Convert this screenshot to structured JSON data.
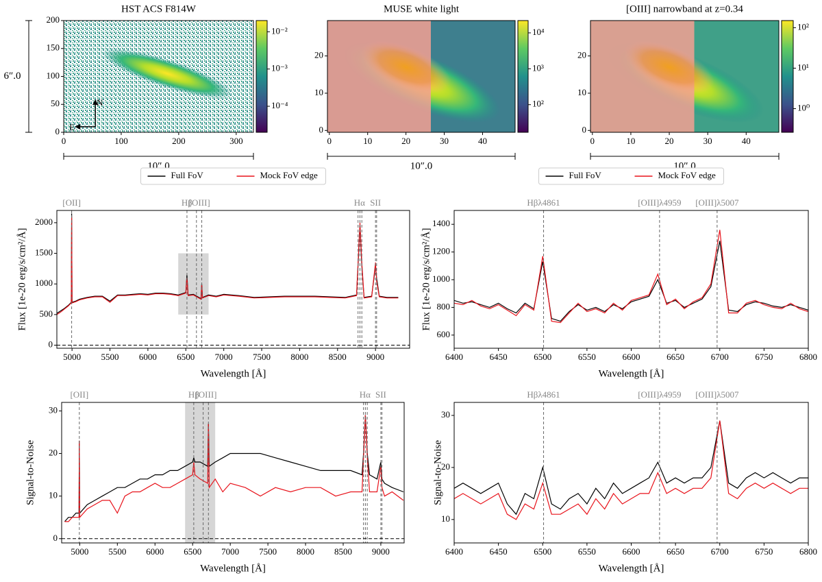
{
  "chart_data": [
    {
      "type": "image",
      "title": "HST ACS F814W",
      "xlim": [
        0,
        330
      ],
      "ylim": [
        0,
        200
      ],
      "xticks": [
        0,
        100,
        200,
        300
      ],
      "yticks": [
        0,
        50,
        100,
        150,
        200
      ],
      "colorbar": {
        "log": true,
        "lim": [
          2e-05,
          0.02
        ],
        "ticks": [
          {
            "value": 0.01,
            "label": "10⁻²"
          },
          {
            "value": 0.001,
            "label": "10⁻³"
          },
          {
            "value": 0.0001,
            "label": "10⁻⁴"
          }
        ]
      },
      "scalebar_x": "10″.0",
      "scalebar_y": "6″.0",
      "compass": [
        "N",
        "E"
      ]
    },
    {
      "type": "image",
      "title": "MUSE white light",
      "xlim": [
        -0.5,
        48.5
      ],
      "ylim": [
        -0.5,
        29.5
      ],
      "xticks": [
        0,
        10,
        20,
        30,
        40
      ],
      "yticks": [
        0,
        10,
        20
      ],
      "colorbar": {
        "log": true,
        "lim": [
          17,
          22000
        ],
        "ticks": [
          {
            "value": 10000,
            "label": "10⁴"
          },
          {
            "value": 1000,
            "label": "10³"
          },
          {
            "value": 100,
            "label": "10²"
          }
        ]
      },
      "scalebar_x": "10″.0"
    },
    {
      "type": "image",
      "title": "[OIII] narrowband at z=0.34",
      "xlim": [
        -0.5,
        48.5
      ],
      "ylim": [
        -0.5,
        29.5
      ],
      "xticks": [
        0,
        10,
        20,
        30,
        40
      ],
      "yticks": [
        0,
        10,
        20
      ],
      "colorbar": {
        "log": true,
        "lim": [
          0.26,
          150
        ],
        "ticks": [
          {
            "value": 100,
            "label": "10²"
          },
          {
            "value": 10,
            "label": "10¹"
          },
          {
            "value": 1,
            "label": "10⁰"
          }
        ]
      },
      "scalebar_x": "10″.0"
    },
    {
      "type": "line",
      "xlabel": "Wavelength [Å]",
      "ylabel": "Flux [1e-20 erg/s/cm²/Å]",
      "xlim": [
        4800,
        9450
      ],
      "ylim": [
        -50,
        2200
      ],
      "xticks": [
        5000,
        5500,
        6000,
        6500,
        7000,
        7500,
        8000,
        8500,
        9000
      ],
      "yticks": [
        0,
        500,
        1000,
        1500,
        2000
      ],
      "legend": "top",
      "span": {
        "x": [
          6400,
          6800
        ],
        "y": [
          500,
          1500
        ]
      },
      "hline": 0,
      "vlines": [
        4995,
        6515,
        6640,
        6710,
        8770,
        8795,
        8820,
        9000,
        9015
      ],
      "line_labels": [
        {
          "x": 4995,
          "label": "[OII]"
        },
        {
          "x": 6515,
          "label": "Hβ"
        },
        {
          "x": 6680,
          "label": "[OIII]"
        },
        {
          "x": 8790,
          "label": "Hα"
        },
        {
          "x": 9000,
          "label": "SII"
        }
      ],
      "x": [
        4800,
        4850,
        4900,
        4950,
        4990,
        4995,
        5000,
        5050,
        5100,
        5200,
        5300,
        5400,
        5500,
        5600,
        5700,
        5800,
        5900,
        6000,
        6100,
        6200,
        6300,
        6400,
        6500,
        6515,
        6530,
        6600,
        6700,
        6710,
        6720,
        6800,
        6900,
        7000,
        7200,
        7400,
        7600,
        7800,
        8000,
        8200,
        8400,
        8600,
        8750,
        8770,
        8795,
        8820,
        8850,
        8950,
        9000,
        9015,
        9050,
        9150,
        9300
      ],
      "series": [
        {
          "name": "Full FoV",
          "color": "#000000",
          "values": [
            520,
            560,
            600,
            650,
            700,
            2150,
            700,
            720,
            750,
            780,
            800,
            800,
            720,
            820,
            820,
            830,
            840,
            830,
            850,
            850,
            840,
            820,
            860,
            1150,
            820,
            830,
            760,
            1000,
            780,
            820,
            800,
            830,
            810,
            780,
            790,
            800,
            800,
            800,
            790,
            780,
            820,
            1300,
            1950,
            1300,
            780,
            800,
            1300,
            1100,
            800,
            780,
            780
          ]
        },
        {
          "name": "Mock FoV edge",
          "color": "#e8121a",
          "values": [
            500,
            540,
            590,
            640,
            690,
            2100,
            690,
            710,
            740,
            770,
            790,
            790,
            700,
            810,
            810,
            820,
            830,
            820,
            840,
            840,
            830,
            810,
            850,
            1100,
            810,
            820,
            750,
            980,
            770,
            810,
            790,
            820,
            800,
            770,
            780,
            790,
            790,
            790,
            780,
            770,
            810,
            1350,
            2000,
            1350,
            770,
            790,
            1350,
            1050,
            790,
            770,
            770
          ]
        }
      ]
    },
    {
      "type": "line",
      "xlabel": "Wavelength [Å]",
      "ylabel": "Flux [1e-20 erg/s/cm²/Å]",
      "xlim": [
        6400,
        6800
      ],
      "ylim": [
        505,
        1500
      ],
      "xticks": [
        6400,
        6450,
        6500,
        6550,
        6600,
        6650,
        6700,
        6750,
        6800
      ],
      "yticks": [
        600,
        800,
        1000,
        1200,
        1400
      ],
      "legend": "top",
      "vlines": [
        6501,
        6632,
        6697
      ],
      "line_labels": [
        {
          "x": 6501,
          "label": "Hβλ4861"
        },
        {
          "x": 6632,
          "label": "[OIII]λ4959"
        },
        {
          "x": 6697,
          "label": "[OIII]λ5007"
        }
      ],
      "x": [
        6400,
        6410,
        6420,
        6430,
        6440,
        6450,
        6460,
        6470,
        6480,
        6490,
        6500,
        6510,
        6520,
        6530,
        6540,
        6550,
        6560,
        6570,
        6580,
        6590,
        6600,
        6610,
        6620,
        6630,
        6640,
        6650,
        6660,
        6670,
        6680,
        6690,
        6700,
        6710,
        6720,
        6730,
        6740,
        6750,
        6760,
        6770,
        6780,
        6790,
        6800
      ],
      "series": [
        {
          "name": "Full FoV",
          "color": "#000000",
          "values": [
            850,
            830,
            840,
            820,
            800,
            830,
            790,
            760,
            830,
            790,
            1130,
            720,
            700,
            770,
            820,
            780,
            800,
            770,
            820,
            790,
            840,
            860,
            880,
            1000,
            830,
            850,
            800,
            830,
            860,
            950,
            1280,
            780,
            770,
            820,
            840,
            830,
            810,
            800,
            820,
            800,
            780
          ]
        },
        {
          "name": "Mock FoV edge",
          "color": "#e8121a",
          "values": [
            830,
            820,
            850,
            810,
            790,
            820,
            780,
            740,
            820,
            780,
            1170,
            700,
            690,
            760,
            830,
            770,
            790,
            760,
            830,
            780,
            850,
            870,
            890,
            1040,
            820,
            860,
            790,
            840,
            870,
            970,
            1360,
            760,
            760,
            830,
            850,
            820,
            800,
            790,
            830,
            790,
            770
          ]
        }
      ]
    },
    {
      "type": "line",
      "xlabel": "Wavelength [Å]",
      "ylabel": "Signal-to-Noise",
      "xlim": [
        4760,
        9310
      ],
      "ylim": [
        -1,
        32
      ],
      "xticks": [
        5000,
        5500,
        6000,
        6500,
        7000,
        7500,
        8000,
        8500,
        9000
      ],
      "yticks": [
        0,
        10,
        20,
        30
      ],
      "span": {
        "x": [
          6400,
          6800
        ]
      },
      "hline": 0,
      "vlines": [
        4995,
        6515,
        6640,
        6710,
        8770,
        8795,
        8820,
        9000,
        9015
      ],
      "line_labels": [
        {
          "x": 4995,
          "label": "[OII]"
        },
        {
          "x": 6515,
          "label": "Hβ"
        },
        {
          "x": 6680,
          "label": "[OIII]"
        },
        {
          "x": 8790,
          "label": "Hα"
        },
        {
          "x": 9000,
          "label": "SII"
        }
      ],
      "x": [
        4800,
        4850,
        4900,
        4950,
        4990,
        4995,
        5000,
        5050,
        5100,
        5200,
        5300,
        5400,
        5500,
        5600,
        5700,
        5800,
        5900,
        6000,
        6100,
        6200,
        6300,
        6400,
        6500,
        6515,
        6530,
        6600,
        6700,
        6710,
        6720,
        6800,
        6900,
        7000,
        7200,
        7400,
        7600,
        7800,
        8000,
        8200,
        8400,
        8600,
        8750,
        8770,
        8795,
        8820,
        8850,
        8950,
        9000,
        9015,
        9050,
        9150,
        9300
      ],
      "series": [
        {
          "color": "#000000",
          "values": [
            4,
            5,
            5,
            6,
            6,
            23,
            6,
            7,
            8,
            9,
            10,
            11,
            12,
            12,
            13,
            14,
            14,
            15,
            15,
            16,
            16,
            17,
            18,
            19,
            18,
            18,
            17,
            27,
            17,
            18,
            19,
            20,
            20,
            20,
            19,
            18,
            17,
            16,
            16,
            16,
            15,
            20,
            29,
            20,
            15,
            14,
            18,
            14,
            13,
            12,
            11
          ]
        },
        {
          "color": "#e8121a",
          "values": [
            4,
            4,
            5,
            5,
            5,
            23,
            5,
            6,
            7,
            8,
            9,
            9,
            6,
            10,
            11,
            11,
            12,
            13,
            12,
            12,
            13,
            14,
            15,
            18,
            15,
            14,
            13,
            27,
            12,
            14,
            11,
            13,
            12,
            10,
            12,
            11,
            12,
            12,
            10,
            11,
            11,
            19,
            29,
            19,
            11,
            11,
            17,
            12,
            10,
            11,
            9
          ]
        }
      ]
    },
    {
      "type": "line",
      "xlabel": "Wavelength [Å]",
      "ylabel": "Signal-to-Noise",
      "xlim": [
        6400,
        6800
      ],
      "ylim": [
        5.5,
        32.5
      ],
      "xticks": [
        6400,
        6450,
        6500,
        6550,
        6600,
        6650,
        6700,
        6750,
        6800
      ],
      "yticks": [
        10,
        20,
        30
      ],
      "vlines": [
        6501,
        6632,
        6697
      ],
      "line_labels": [
        {
          "x": 6501,
          "label": "Hβλ4861"
        },
        {
          "x": 6632,
          "label": "[OIII]λ4959"
        },
        {
          "x": 6697,
          "label": "[OIII]λ5007"
        }
      ],
      "x": [
        6400,
        6410,
        6420,
        6430,
        6440,
        6450,
        6460,
        6470,
        6480,
        6490,
        6500,
        6510,
        6520,
        6530,
        6540,
        6550,
        6560,
        6570,
        6580,
        6590,
        6600,
        6610,
        6620,
        6630,
        6640,
        6650,
        6660,
        6670,
        6680,
        6690,
        6700,
        6710,
        6720,
        6730,
        6740,
        6750,
        6760,
        6770,
        6780,
        6790,
        6800
      ],
      "series": [
        {
          "color": "#000000",
          "values": [
            16,
            17,
            16,
            15,
            16,
            17,
            13,
            11,
            15,
            14,
            20,
            13,
            12,
            14,
            15,
            13,
            16,
            14,
            17,
            15,
            16,
            17,
            18,
            21,
            17,
            18,
            17,
            18,
            18,
            20,
            29,
            17,
            16,
            18,
            19,
            18,
            19,
            18,
            17,
            18,
            18
          ]
        },
        {
          "color": "#e8121a",
          "values": [
            14,
            15,
            14,
            13,
            14,
            15,
            11,
            10,
            13,
            12,
            17,
            11,
            11,
            12,
            13,
            11,
            14,
            12,
            15,
            13,
            14,
            15,
            15,
            19,
            15,
            16,
            15,
            16,
            16,
            18,
            29,
            15,
            14,
            16,
            17,
            16,
            17,
            16,
            15,
            16,
            16
          ]
        }
      ]
    }
  ]
}
